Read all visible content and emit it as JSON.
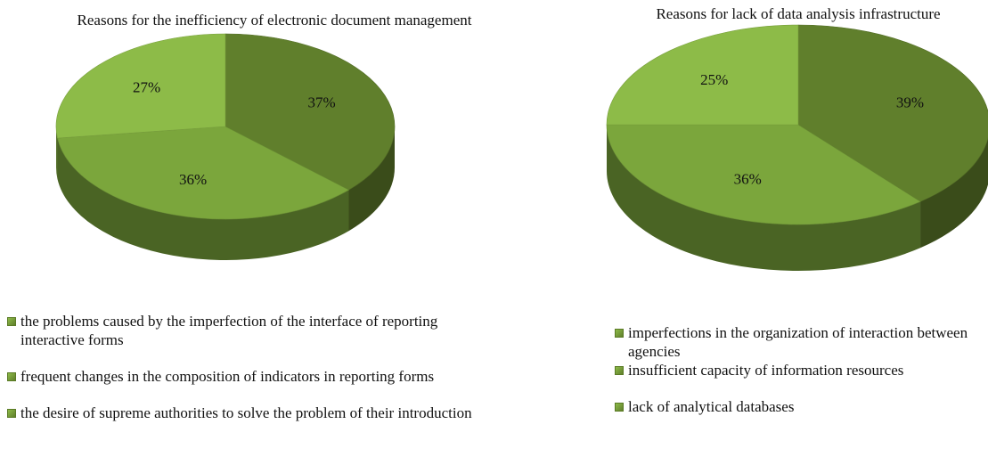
{
  "chart_data": [
    {
      "type": "pie",
      "title": "Reasons for the inefficiency of electronic document management",
      "categories": [
        "the problems caused by the imperfection of the interface of reporting interactive forms",
        "frequent changes in the composition of indicators in reporting forms",
        "the desire of supreme authorities to solve the problem of their introduction"
      ],
      "values": [
        37,
        36,
        27
      ],
      "value_labels": [
        "37%",
        "36%",
        "27%"
      ],
      "colors": [
        "#607f2c",
        "#7ba63c",
        "#8dbb48"
      ]
    },
    {
      "type": "pie",
      "title": "Reasons for lack of data analysis infrastructure",
      "categories": [
        "imperfections in the organization of interaction between agencies",
        "insufficient capacity of information resources",
        "lack of analytical databases"
      ],
      "values": [
        39,
        36,
        25
      ],
      "value_labels": [
        "39%",
        "36%",
        "25%"
      ],
      "colors": [
        "#607f2c",
        "#7ba63c",
        "#8dbb48"
      ]
    }
  ]
}
